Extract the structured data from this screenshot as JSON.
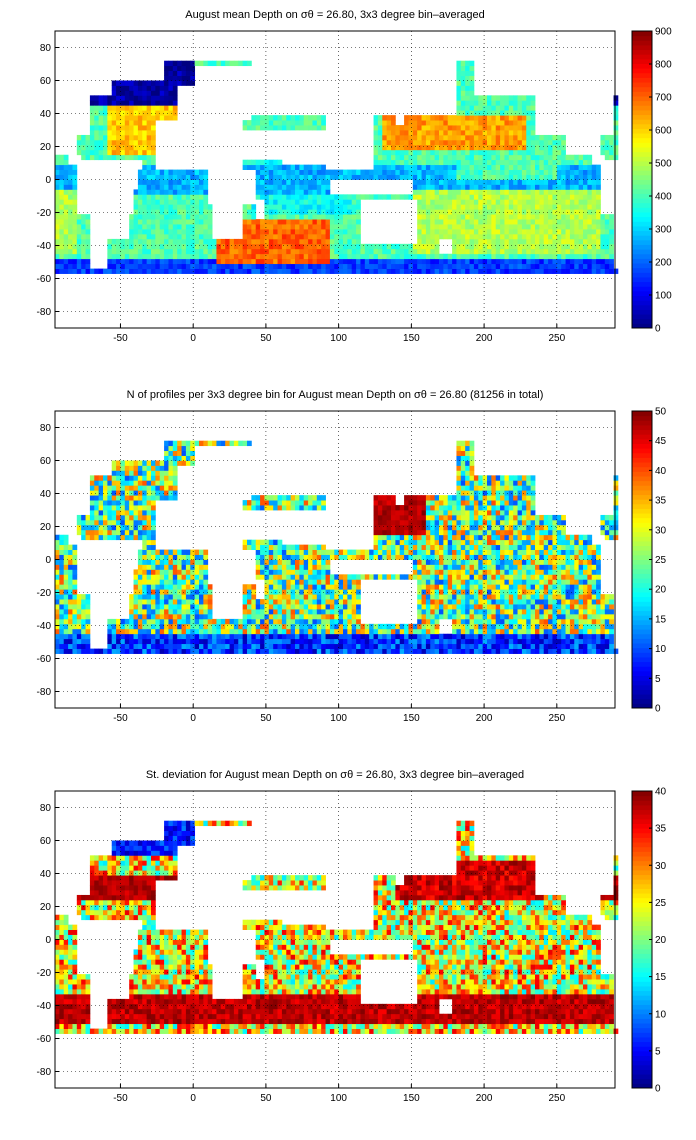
{
  "figure": {
    "panels": [
      {
        "title": "August mean Depth on σθ = 26.80, 3x3 degree bin–averaged",
        "colorbar_ticks": [
          "0",
          "100",
          "200",
          "300",
          "400",
          "500",
          "600",
          "700",
          "800",
          "900"
        ]
      },
      {
        "title": "N of profiles per 3x3 degree bin for August mean Depth on σθ = 26.80 (81256 in total)",
        "colorbar_ticks": [
          "0",
          "5",
          "10",
          "15",
          "20",
          "25",
          "30",
          "35",
          "40",
          "45",
          "50"
        ]
      },
      {
        "title": "St. deviation for August mean Depth on σθ = 26.80, 3x3 degree bin–averaged",
        "colorbar_ticks": [
          "0",
          "5",
          "10",
          "15",
          "20",
          "25",
          "30",
          "35",
          "40"
        ]
      }
    ]
  },
  "chart_data": [
    {
      "type": "heatmap",
      "title": "August mean Depth on σθ = 26.80, 3x3 degree bin–averaged",
      "xlabel": "",
      "ylabel": "",
      "xlim": [
        -95,
        290
      ],
      "ylim": [
        -90,
        90
      ],
      "xticks": [
        -50,
        0,
        50,
        100,
        150,
        200,
        250
      ],
      "yticks": [
        -80,
        -60,
        -40,
        -20,
        0,
        20,
        40,
        60,
        80
      ],
      "grid": "dotted",
      "colormap": "jet",
      "clim": [
        0,
        900
      ],
      "colorbar": {
        "ticks": [
          0,
          100,
          200,
          300,
          400,
          500,
          600,
          700,
          800,
          900
        ]
      }
    },
    {
      "type": "heatmap",
      "title": "N of profiles per 3x3 degree bin for August mean Depth on σθ = 26.80 (81256 in total)",
      "xlabel": "",
      "ylabel": "",
      "xlim": [
        -95,
        290
      ],
      "ylim": [
        -90,
        90
      ],
      "xticks": [
        -50,
        0,
        50,
        100,
        150,
        200,
        250
      ],
      "yticks": [
        -80,
        -60,
        -40,
        -20,
        0,
        20,
        40,
        60,
        80
      ],
      "grid": "dotted",
      "colormap": "jet",
      "clim": [
        0,
        50
      ],
      "colorbar": {
        "ticks": [
          0,
          5,
          10,
          15,
          20,
          25,
          30,
          35,
          40,
          45,
          50
        ]
      }
    },
    {
      "type": "heatmap",
      "title": "St. deviation for August mean Depth on σθ = 26.80, 3x3 degree bin–averaged",
      "xlabel": "",
      "ylabel": "",
      "xlim": [
        -95,
        290
      ],
      "ylim": [
        -90,
        90
      ],
      "xticks": [
        -50,
        0,
        50,
        100,
        150,
        200,
        250
      ],
      "yticks": [
        -80,
        -60,
        -40,
        -20,
        0,
        20,
        40,
        60,
        80
      ],
      "grid": "dotted",
      "colormap": "jet",
      "clim": [
        0,
        40
      ],
      "colorbar": {
        "ticks": [
          0,
          5,
          10,
          15,
          20,
          25,
          30,
          35,
          40
        ]
      }
    }
  ]
}
